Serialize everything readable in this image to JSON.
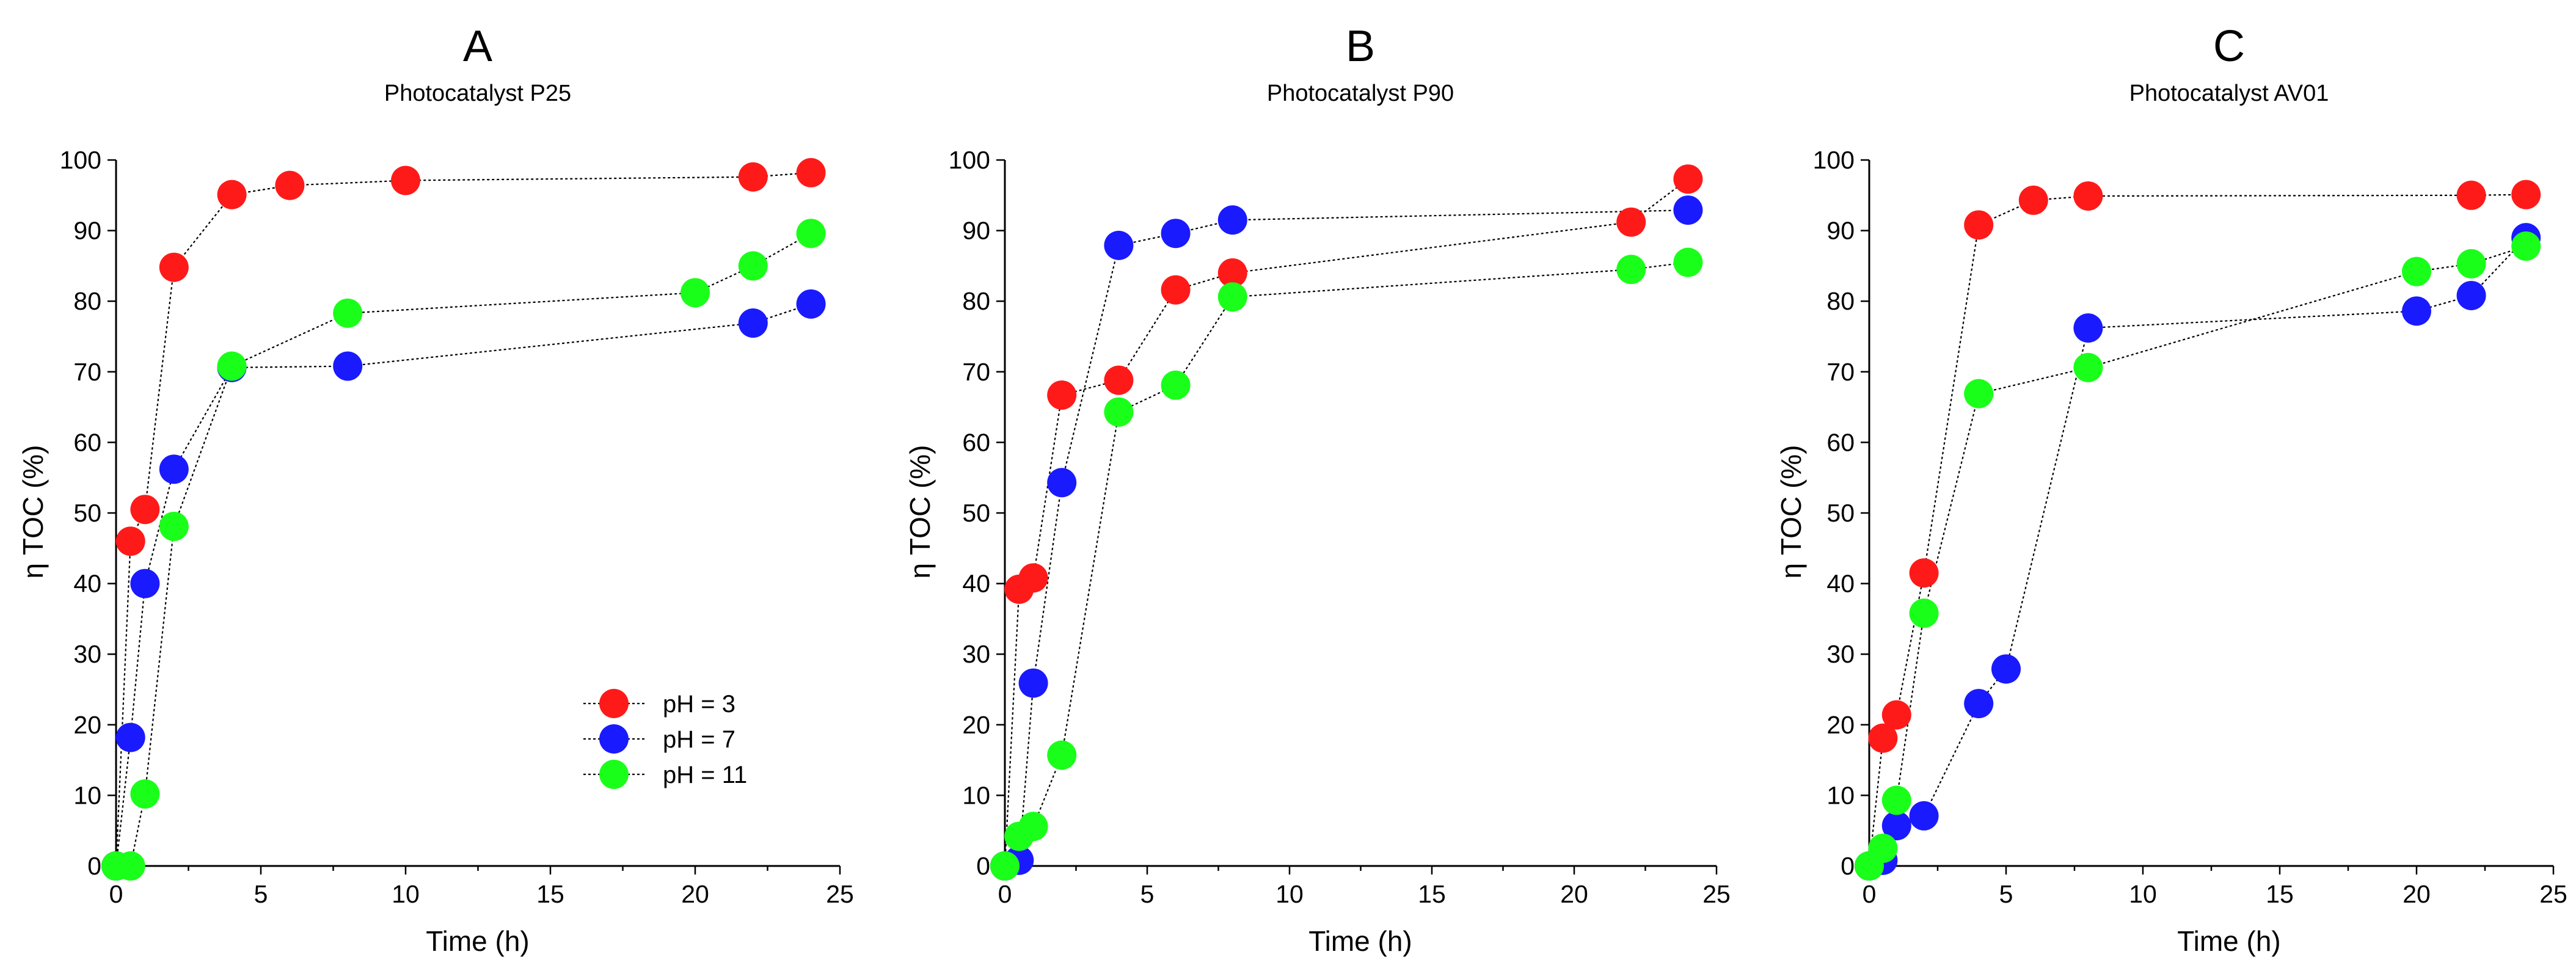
{
  "colors": {
    "pH3": "#ff1a1a",
    "pH7": "#1a1aff",
    "pH11": "#1aff1a",
    "axis": "#000000",
    "background": "#ffffff"
  },
  "chart_data": [
    {
      "type": "line",
      "panel": "A",
      "title": "Photocatalyst P25",
      "xlabel": "Time (h)",
      "ylabel": "η TOC (%)",
      "xlim": [
        0,
        25
      ],
      "ylim": [
        0,
        100
      ],
      "xticks": [
        0,
        5,
        10,
        15,
        20,
        25
      ],
      "yticks": [
        0,
        10,
        20,
        30,
        40,
        50,
        60,
        70,
        80,
        90,
        100
      ],
      "legend": "bottom-right",
      "series": [
        {
          "name": "pH = 3",
          "color_key": "pH3",
          "x": [
            0,
            0.5,
            1,
            2,
            4,
            6,
            10,
            22,
            24
          ],
          "y": [
            0,
            46,
            50.5,
            84.8,
            95.1,
            96.4,
            97.1,
            97.6,
            98.2
          ]
        },
        {
          "name": "pH = 7",
          "color_key": "pH7",
          "x": [
            0,
            0.5,
            1,
            2,
            4,
            8,
            22,
            24
          ],
          "y": [
            0,
            18.2,
            40,
            56.2,
            70.6,
            70.8,
            76.9,
            79.6
          ]
        },
        {
          "name": "pH = 11",
          "color_key": "pH11",
          "x": [
            0,
            0.5,
            1,
            2,
            4,
            8,
            20,
            22,
            24
          ],
          "y": [
            0,
            0,
            10.2,
            48.1,
            70.8,
            78.3,
            81.2,
            85,
            89.6
          ]
        }
      ]
    },
    {
      "type": "line",
      "panel": "B",
      "title": "Photocatalyst P90",
      "xlabel": "Time (h)",
      "ylabel": "η TOC (%)",
      "xlim": [
        0,
        25
      ],
      "ylim": [
        0,
        100
      ],
      "xticks": [
        0,
        5,
        10,
        15,
        20,
        25
      ],
      "yticks": [
        0,
        10,
        20,
        30,
        40,
        50,
        60,
        70,
        80,
        90,
        100
      ],
      "series": [
        {
          "name": "pH = 3",
          "color_key": "pH3",
          "x": [
            0,
            0.5,
            1,
            2,
            4,
            6,
            8,
            22,
            24
          ],
          "y": [
            0,
            39.2,
            40.8,
            66.7,
            68.8,
            81.6,
            84,
            91.2,
            97.3
          ]
        },
        {
          "name": "pH = 7",
          "color_key": "pH7",
          "x": [
            0,
            0.5,
            1,
            2,
            4,
            6,
            8,
            24
          ],
          "y": [
            0,
            0.8,
            25.9,
            54.3,
            87.9,
            89.6,
            91.5,
            92.9
          ]
        },
        {
          "name": "pH = 11",
          "color_key": "pH11",
          "x": [
            0,
            0.5,
            1,
            2,
            4,
            6,
            8,
            22,
            24
          ],
          "y": [
            0,
            4.2,
            5.6,
            15.7,
            64.3,
            68.1,
            80.6,
            84.5,
            85.5
          ]
        }
      ]
    },
    {
      "type": "line",
      "panel": "C",
      "title": "Photocatalyst AV01",
      "xlabel": "Time (h)",
      "ylabel": "η TOC (%)",
      "xlim": [
        0,
        25
      ],
      "ylim": [
        0,
        100
      ],
      "xticks": [
        0,
        5,
        10,
        15,
        20,
        25
      ],
      "yticks": [
        0,
        10,
        20,
        30,
        40,
        50,
        60,
        70,
        80,
        90,
        100
      ],
      "series": [
        {
          "name": "pH = 3",
          "color_key": "pH3",
          "x": [
            0,
            0.5,
            1,
            2,
            4,
            6,
            8,
            22,
            24
          ],
          "y": [
            0,
            18.1,
            21.4,
            41.5,
            90.8,
            94.3,
            94.9,
            95,
            95.1
          ]
        },
        {
          "name": "pH = 7",
          "color_key": "pH7",
          "x": [
            0,
            0.5,
            1,
            2,
            4,
            5,
            8,
            20,
            22,
            24
          ],
          "y": [
            0,
            0.8,
            5.7,
            7.1,
            23,
            27.9,
            76.2,
            78.6,
            80.8,
            89
          ]
        },
        {
          "name": "pH = 11",
          "color_key": "pH11",
          "x": [
            0,
            0.5,
            1,
            2,
            4,
            8,
            20,
            22,
            24
          ],
          "y": [
            0,
            2.5,
            9.3,
            35.8,
            66.9,
            70.6,
            84.2,
            85.3,
            87.8
          ]
        }
      ]
    }
  ]
}
